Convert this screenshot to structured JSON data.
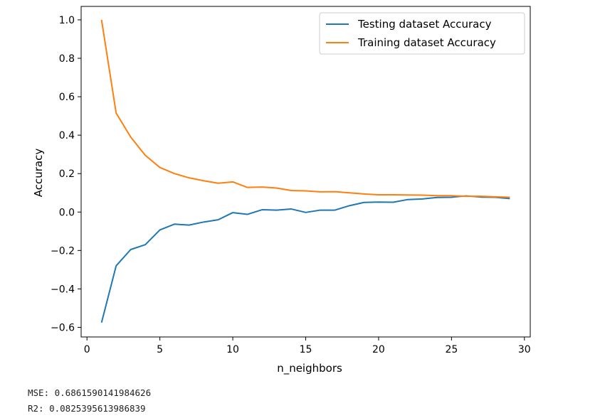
{
  "chart_data": {
    "type": "line",
    "title": "",
    "xlabel": "n_neighbors",
    "ylabel": "Accuracy",
    "xlim": [
      -0.4,
      30.4
    ],
    "ylim": [
      -0.65,
      1.07
    ],
    "xticks": [
      0,
      5,
      10,
      15,
      20,
      25,
      30
    ],
    "yticks": [
      -0.6,
      -0.4,
      -0.2,
      0.0,
      0.2,
      0.4,
      0.6,
      0.8,
      1.0
    ],
    "ytick_labels": [
      "−0.6",
      "−0.4",
      "−0.2",
      "0.0",
      "0.2",
      "0.4",
      "0.6",
      "0.8",
      "1.0"
    ],
    "grid": false,
    "legend_position": "top-right",
    "x": [
      1,
      2,
      3,
      4,
      5,
      6,
      7,
      8,
      9,
      10,
      11,
      12,
      13,
      14,
      15,
      16,
      17,
      18,
      19,
      20,
      21,
      22,
      23,
      24,
      25,
      26,
      27,
      28,
      29
    ],
    "series": [
      {
        "name": "Testing dataset Accuracy",
        "color": "#1f77b4",
        "values": [
          -0.575,
          -0.28,
          -0.195,
          -0.17,
          -0.093,
          -0.063,
          -0.068,
          -0.052,
          -0.04,
          -0.003,
          -0.012,
          0.012,
          0.01,
          0.016,
          -0.002,
          0.01,
          0.01,
          0.033,
          0.05,
          0.052,
          0.051,
          0.065,
          0.068,
          0.076,
          0.077,
          0.084,
          0.078,
          0.077,
          0.07
        ]
      },
      {
        "name": "Training dataset Accuracy",
        "color": "#ff7f0e",
        "values": [
          1.0,
          0.515,
          0.39,
          0.295,
          0.232,
          0.2,
          0.178,
          0.163,
          0.15,
          0.157,
          0.128,
          0.13,
          0.125,
          0.112,
          0.11,
          0.105,
          0.106,
          0.1,
          0.094,
          0.09,
          0.09,
          0.089,
          0.088,
          0.085,
          0.085,
          0.082,
          0.082,
          0.079,
          0.077
        ]
      }
    ]
  },
  "output": {
    "mse": "MSE: 0.6861590141984626",
    "r2": "R2: 0.0825395613986839"
  }
}
